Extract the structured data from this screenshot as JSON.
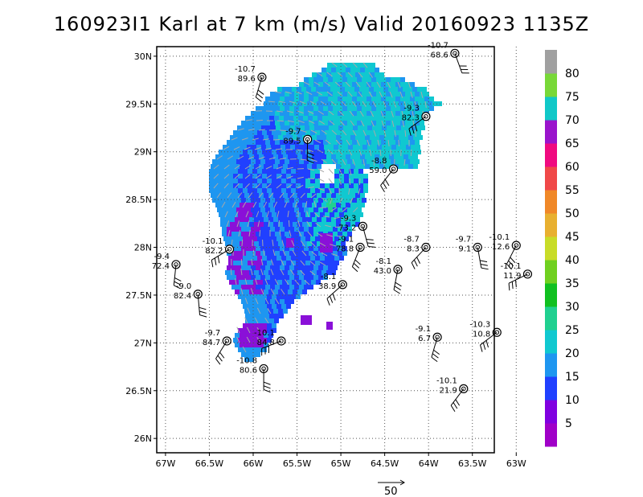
{
  "title": "160923I1 Karl at 7 km (m/s) Valid 20160923 1135Z",
  "map": {
    "lon_range": [
      -67.1,
      -63.25
    ],
    "lat_range": [
      25.85,
      30.1
    ],
    "lon_ticks": [
      {
        "v": -67,
        "label": "67W"
      },
      {
        "v": -66.5,
        "label": "66.5W"
      },
      {
        "v": -66,
        "label": "66W"
      },
      {
        "v": -65.5,
        "label": "65.5W"
      },
      {
        "v": -65,
        "label": "65W"
      },
      {
        "v": -64.5,
        "label": "64.5W"
      },
      {
        "v": -64,
        "label": "64W"
      },
      {
        "v": -63.5,
        "label": "63.5W"
      },
      {
        "v": -63,
        "label": "63W"
      }
    ],
    "lat_ticks": [
      {
        "v": 26,
        "label": "26N"
      },
      {
        "v": 26.5,
        "label": "26.5N"
      },
      {
        "v": 27,
        "label": "27N"
      },
      {
        "v": 27.5,
        "label": "27.5N"
      },
      {
        "v": 28,
        "label": "28N"
      },
      {
        "v": 28.5,
        "label": "28.5N"
      },
      {
        "v": 29,
        "label": "29N"
      },
      {
        "v": 29.5,
        "label": "29.5N"
      },
      {
        "v": 30,
        "label": "30N"
      }
    ],
    "grid": true
  },
  "colorbar": {
    "labels": [
      "5",
      "10",
      "15",
      "20",
      "25",
      "30",
      "35",
      "40",
      "45",
      "50",
      "55",
      "60",
      "65",
      "70",
      "75",
      "80"
    ],
    "colors": [
      "#a000c8",
      "#8000e0",
      "#2040ff",
      "#1e96f0",
      "#10c8d0",
      "#20d090",
      "#10c020",
      "#70d020",
      "#c8dc28",
      "#e8b030",
      "#f08828",
      "#f04848",
      "#f00a80",
      "#9a14cc",
      "#10c8c8",
      "#78d838",
      "#a0a0a0"
    ]
  },
  "stations": [
    {
      "lon": -63.7,
      "lat": 30.03,
      "top": "-10.7",
      "bottom": "68.6"
    },
    {
      "lon": -65.9,
      "lat": 29.78,
      "top": "-10.7",
      "bottom": "89.6"
    },
    {
      "lon": -64.03,
      "lat": 29.37,
      "top": "-9.3",
      "bottom": "82.3"
    },
    {
      "lon": -65.38,
      "lat": 29.13,
      "top": "-9.7",
      "bottom": "89.5"
    },
    {
      "lon": -64.4,
      "lat": 28.82,
      "top": "-8.8",
      "bottom": "59.0"
    },
    {
      "lon": -64.75,
      "lat": 28.22,
      "top": "-9.3",
      "bottom": "73.2"
    },
    {
      "lon": -64.78,
      "lat": 28.0,
      "top": "-9.1",
      "bottom": "78.8"
    },
    {
      "lon": -66.27,
      "lat": 27.98,
      "top": "-10.1",
      "bottom": "82.2"
    },
    {
      "lon": -66.88,
      "lat": 27.82,
      "top": "-9.4",
      "bottom": "72.4"
    },
    {
      "lon": -64.03,
      "lat": 28.0,
      "top": "-8.7",
      "bottom": "8.3"
    },
    {
      "lon": -63.44,
      "lat": 28.0,
      "top": "-9.7",
      "bottom": "9.1"
    },
    {
      "lon": -63.0,
      "lat": 28.02,
      "top": "-10.1",
      "bottom": "12.6"
    },
    {
      "lon": -62.87,
      "lat": 27.72,
      "top": "-10.1",
      "bottom": "11.9"
    },
    {
      "lon": -64.35,
      "lat": 27.77,
      "top": "-8.1",
      "bottom": "43.0"
    },
    {
      "lon": -64.98,
      "lat": 27.61,
      "top": "-8.1",
      "bottom": "38.9"
    },
    {
      "lon": -66.63,
      "lat": 27.51,
      "top": "-9.0",
      "bottom": "82.4"
    },
    {
      "lon": -66.3,
      "lat": 27.02,
      "top": "-9.7",
      "bottom": "84.7"
    },
    {
      "lon": -65.68,
      "lat": 27.02,
      "top": "-10.1",
      "bottom": "84.8"
    },
    {
      "lon": -63.9,
      "lat": 27.06,
      "top": "-9.1",
      "bottom": "6.7"
    },
    {
      "lon": -63.22,
      "lat": 27.11,
      "top": "-10.3",
      "bottom": "10.8"
    },
    {
      "lon": -65.88,
      "lat": 26.73,
      "top": "-10.8",
      "bottom": "80.6"
    },
    {
      "lon": -63.6,
      "lat": 26.52,
      "top": "-10.1",
      "bottom": "21.9"
    }
  ],
  "scale_arrow": {
    "label": "50"
  }
}
